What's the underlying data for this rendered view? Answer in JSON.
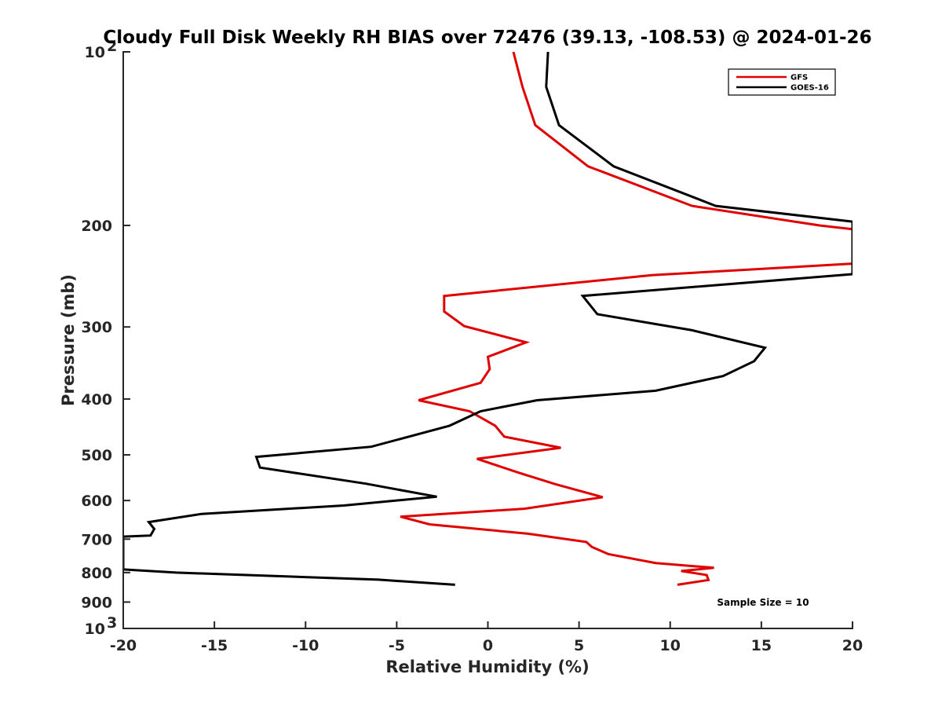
{
  "chart_data": {
    "type": "line",
    "title": "Cloudy Full Disk Weekly RH BIAS over 72476 (39.13, -108.53) @ 2024-01-26",
    "xlabel": "Relative Humidity (%)",
    "ylabel": "Pressure (mb)",
    "xlim": [
      -20,
      20
    ],
    "ylim": [
      100,
      1000
    ],
    "y_scale": "log",
    "y_reversed": true,
    "grid": false,
    "legend_placement": "top-right",
    "x_ticks": [
      -20,
      -15,
      -10,
      -5,
      0,
      5,
      10,
      15,
      20
    ],
    "x_tick_labels": [
      "-20",
      "-15",
      "-10",
      "-5",
      "0",
      "5",
      "10",
      "15",
      "20"
    ],
    "y_ticks": [
      {
        "value": 100,
        "base": "10",
        "exp": "2"
      },
      {
        "value": 200,
        "base": "200",
        "exp": ""
      },
      {
        "value": 300,
        "base": "300",
        "exp": ""
      },
      {
        "value": 400,
        "base": "400",
        "exp": ""
      },
      {
        "value": 500,
        "base": "500",
        "exp": ""
      },
      {
        "value": 600,
        "base": "600",
        "exp": ""
      },
      {
        "value": 700,
        "base": "700",
        "exp": ""
      },
      {
        "value": 800,
        "base": "800",
        "exp": ""
      },
      {
        "value": 900,
        "base": "900",
        "exp": ""
      },
      {
        "value": 1000,
        "base": "10",
        "exp": "3"
      }
    ],
    "annotation": "Sample Size = 10",
    "series": [
      {
        "name": "GFS",
        "color": "#e00000",
        "points": [
          [
            1.4,
            100
          ],
          [
            1.9,
            115
          ],
          [
            2.6,
            134
          ],
          [
            5.5,
            158
          ],
          [
            11.2,
            185
          ],
          [
            18.2,
            200
          ],
          [
            20.0,
            203
          ],
          [
            20.0,
            233
          ],
          [
            9.0,
            244
          ],
          [
            -2.4,
            265
          ],
          [
            -2.4,
            282
          ],
          [
            -1.3,
            299
          ],
          [
            2.1,
            319
          ],
          [
            0.0,
            338
          ],
          [
            0.1,
            355
          ],
          [
            -0.4,
            375
          ],
          [
            -3.8,
            402
          ],
          [
            -1.0,
            420
          ],
          [
            0.4,
            445
          ],
          [
            0.9,
            465
          ],
          [
            4.0,
            486
          ],
          [
            -0.6,
            508
          ],
          [
            1.7,
            537
          ],
          [
            3.7,
            562
          ],
          [
            6.3,
            592
          ],
          [
            2.0,
            620
          ],
          [
            -4.8,
            640
          ],
          [
            -3.2,
            660
          ],
          [
            2.2,
            685
          ],
          [
            5.4,
            708
          ],
          [
            5.7,
            722
          ],
          [
            6.6,
            743
          ],
          [
            9.2,
            770
          ],
          [
            12.4,
            785
          ],
          [
            10.6,
            795
          ],
          [
            12.0,
            808
          ],
          [
            12.1,
            824
          ],
          [
            10.4,
            840
          ]
        ]
      },
      {
        "name": "GOES-16",
        "color": "#000000",
        "points": [
          [
            3.3,
            100
          ],
          [
            3.2,
            115
          ],
          [
            3.9,
            134
          ],
          [
            6.9,
            158
          ],
          [
            12.5,
            185
          ],
          [
            20.0,
            197
          ],
          [
            20.0,
            243
          ],
          [
            5.2,
            265
          ],
          [
            6.0,
            285
          ],
          [
            11.2,
            304
          ],
          [
            15.2,
            326
          ],
          [
            14.6,
            344
          ],
          [
            12.9,
            365
          ],
          [
            9.2,
            387
          ],
          [
            2.7,
            402
          ],
          [
            -0.4,
            420
          ],
          [
            -2.1,
            445
          ],
          [
            -6.4,
            484
          ],
          [
            -12.7,
            504
          ],
          [
            -12.5,
            526
          ],
          [
            -6.7,
            561
          ],
          [
            -2.8,
            591
          ],
          [
            -7.9,
            612
          ],
          [
            -15.7,
            633
          ],
          [
            -18.6,
            654
          ],
          [
            -18.3,
            672
          ],
          [
            -18.5,
            690
          ],
          [
            -20.0,
            693
          ],
          [
            -20.0,
            790
          ],
          [
            -17.1,
            800
          ],
          [
            -6.0,
            823
          ],
          [
            -1.8,
            840
          ]
        ]
      }
    ]
  }
}
